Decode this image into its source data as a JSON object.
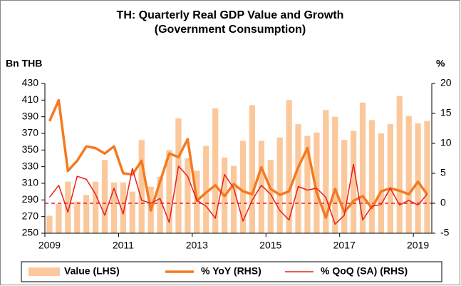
{
  "chart_data": {
    "type": "combo",
    "title": "TH: Quarterly Real GDP Value and Growth",
    "subtitle": "(Government Consumption)",
    "ylabel": "Bn THB",
    "y2label": "%",
    "categories": [
      "2009",
      null,
      null,
      null,
      null,
      null,
      null,
      null,
      "2011",
      null,
      null,
      null,
      null,
      null,
      null,
      null,
      "2013",
      null,
      null,
      null,
      null,
      null,
      null,
      null,
      "2015",
      null,
      null,
      null,
      null,
      null,
      null,
      null,
      "2017",
      null,
      null,
      null,
      null,
      null,
      null,
      null,
      "2019",
      null
    ],
    "ylim": [
      250,
      430
    ],
    "yticks": [
      250,
      270,
      290,
      310,
      330,
      350,
      370,
      390,
      410,
      430
    ],
    "y2lim": [
      -5,
      20
    ],
    "y2ticks": [
      -5,
      0,
      5,
      10,
      15,
      20
    ],
    "legend": "bottom",
    "series": [
      {
        "name": "Value (LHS)",
        "type": "bar",
        "axis": "y",
        "color": "#fbc89c",
        "values": [
          271,
          285,
          312,
          288,
          296,
          312,
          338,
          311,
          311,
          300,
          362,
          306,
          318,
          350,
          388,
          340,
          325,
          355,
          400,
          341,
          331,
          361,
          404,
          361,
          338,
          365,
          410,
          381,
          367,
          371,
          398,
          390,
          362,
          373,
          407,
          386,
          370,
          381,
          415,
          391,
          382,
          385
        ]
      },
      {
        "name": "% YoY (RHS)",
        "type": "line",
        "axis": "y2",
        "color": "#f47a20",
        "values": [
          13.7,
          17.2,
          5.4,
          7.1,
          9.5,
          9.2,
          8.3,
          9.5,
          5.0,
          4.8,
          7.1,
          -1.2,
          3.6,
          8.3,
          7.7,
          10.7,
          0.4,
          1.8,
          3.0,
          1.2,
          3.2,
          2.0,
          1.5,
          6.0,
          2.4,
          1.4,
          2.0,
          6.0,
          9.2,
          1.8,
          -2.4,
          2.4,
          -1.5,
          0.4,
          1.2,
          -0.8,
          2.0,
          2.5,
          2.1,
          1.5,
          3.6,
          1.5
        ]
      },
      {
        "name": "% QoQ (SA) (RHS)",
        "type": "line",
        "axis": "y2",
        "color": "#e8201e",
        "values": [
          1.0,
          3.0,
          -1.5,
          4.5,
          4.0,
          1.5,
          -2.0,
          2.5,
          -1.8,
          5.8,
          0.5,
          0.0,
          0.8,
          -3.2,
          6.2,
          4.5,
          0.5,
          -0.5,
          -2.5,
          4.8,
          2.5,
          -3.0,
          0.5,
          3.0,
          1.5,
          -1.2,
          -2.8,
          2.8,
          2.2,
          2.5,
          1.0,
          -3.5,
          -2.0,
          6.5,
          -2.8,
          -0.5,
          -0.2,
          2.5,
          -0.3,
          0.5,
          -0.3,
          1.5
        ]
      }
    ]
  }
}
